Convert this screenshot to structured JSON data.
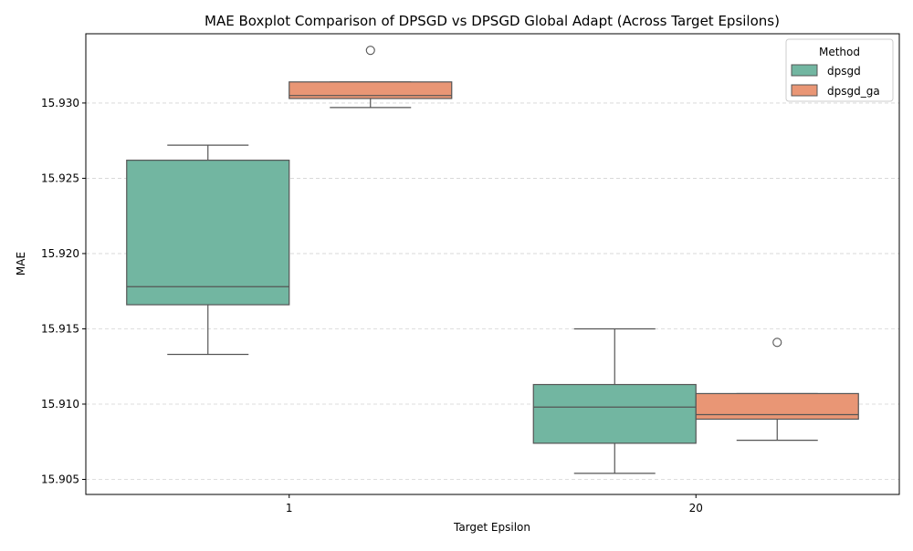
{
  "chart_data": {
    "type": "box",
    "title": "MAE Boxplot Comparison of DPSGD vs DPSGD Global Adapt (Across Target Epsilons)",
    "xlabel": "Target Epsilon",
    "ylabel": "MAE",
    "categories": [
      "1",
      "20"
    ],
    "ylim": [
      15.904,
      15.9346
    ],
    "yticks": [
      "15.905",
      "15.910",
      "15.915",
      "15.920",
      "15.925",
      "15.930"
    ],
    "grid": "horizontal dashed",
    "legend": {
      "title": "Method",
      "position": "top-right"
    },
    "series": [
      {
        "name": "dpsgd",
        "color": "#72b6a1",
        "boxes": [
          {
            "category": "1",
            "whisker_low": 15.9133,
            "q1": 15.9166,
            "median": 15.9178,
            "q3": 15.9262,
            "whisker_high": 15.9272,
            "outliers": []
          },
          {
            "category": "20",
            "whisker_low": 15.9054,
            "q1": 15.9074,
            "median": 15.9098,
            "q3": 15.9113,
            "whisker_high": 15.915,
            "outliers": []
          }
        ]
      },
      {
        "name": "dpsgd_ga",
        "color": "#e99675",
        "boxes": [
          {
            "category": "1",
            "whisker_low": 15.9297,
            "q1": 15.9303,
            "median": 15.9305,
            "q3": 15.9314,
            "whisker_high": 15.9314,
            "outliers": [
              15.9335
            ]
          },
          {
            "category": "20",
            "whisker_low": 15.9076,
            "q1": 15.909,
            "median": 15.9093,
            "q3": 15.9107,
            "whisker_high": 15.9107,
            "outliers": [
              15.9141
            ]
          }
        ]
      }
    ]
  }
}
